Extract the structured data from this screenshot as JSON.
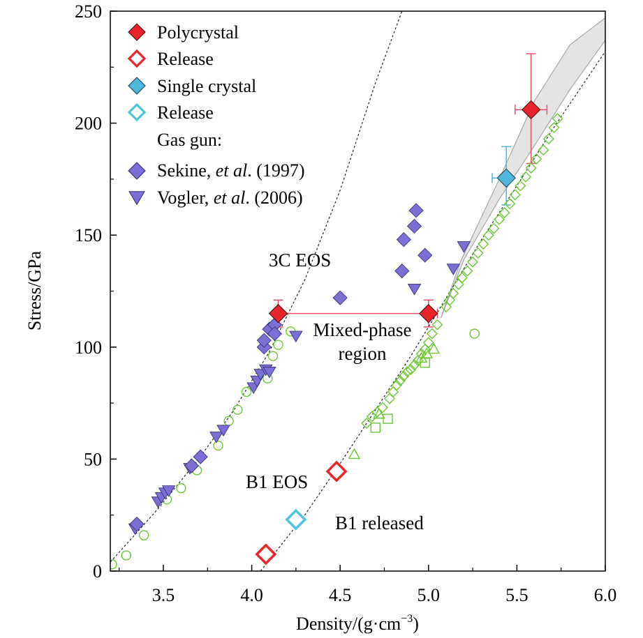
{
  "chart_data": {
    "type": "scatter",
    "xlabel": "Density/(g·cm",
    "xlabel_sup": "−3",
    "xlabel_end": ")",
    "ylabel": "Stress/GPa",
    "xlim": [
      3.2,
      6.0
    ],
    "ylim": [
      0,
      250
    ],
    "xticks": [
      "3.5",
      "4.0",
      "4.5",
      "5.0",
      "5.5",
      "6.0"
    ],
    "yticks": [
      "0",
      "50",
      "100",
      "150",
      "200",
      "250"
    ],
    "grid": false,
    "legend": {
      "position": "top-left",
      "entries": [
        {
          "label": "Polycrystal",
          "marker": "diamond-filled",
          "color": "#e8252a"
        },
        {
          "label": "Release",
          "marker": "diamond-open",
          "color": "#e8252a"
        },
        {
          "label": "Single crystal",
          "marker": "diamond-filled",
          "color": "#4fb6dc"
        },
        {
          "label": "Release",
          "marker": "diamond-open",
          "color": "#4fc3dc"
        }
      ],
      "gas_gun_title": "Gas gun:",
      "gas_gun_entries": [
        {
          "label_pre": "Sekine, ",
          "label_em": "et al",
          "label_post": ". (1997)",
          "marker": "diamond-filled",
          "color": "#7b6fd6"
        },
        {
          "label_pre": "Vogler, ",
          "label_em": "et al",
          "label_post": ". (2006)",
          "marker": "triangle-down",
          "color": "#7b6fd6"
        }
      ]
    },
    "annotations": {
      "eos_3c": "3C EOS",
      "mixed_1": "Mixed-phase",
      "mixed_2": "region",
      "b1_eos": "B1 EOS",
      "b1_released": "B1 released"
    },
    "colors": {
      "polycrystal": "#e8252a",
      "single_crystal": "#4fb6dc",
      "release_cyan": "#4fc3dc",
      "gas_gun": "#7b6fd6",
      "green_markers": "#6cc832",
      "band_fill": "#e4e4e4",
      "errorbar_red": "#ec4c6e"
    },
    "series": [
      {
        "name": "Polycrystal",
        "points": [
          {
            "x": 4.15,
            "y": 115,
            "xerr": [
              0,
              0.9
            ],
            "yerr": 6
          },
          {
            "x": 5.0,
            "y": 115,
            "yerr": 6
          },
          {
            "x": 5.58,
            "y": 206,
            "xerr": [
              0.09,
              0.09
            ],
            "yerr": [
              24,
              25
            ]
          }
        ]
      },
      {
        "name": "Release",
        "points": [
          {
            "x": 4.08,
            "y": 7.5
          },
          {
            "x": 4.48,
            "y": 44.5
          }
        ]
      },
      {
        "name": "Single crystal",
        "points": [
          {
            "x": 5.44,
            "y": 175.5,
            "xerr": [
              0.08,
              0
            ],
            "yerr": [
              12,
              14
            ]
          }
        ]
      },
      {
        "name": "Release",
        "points": [
          {
            "x": 4.25,
            "y": 23
          }
        ]
      },
      {
        "name": "Sekine, et al. (1997)",
        "points": [
          {
            "x": 3.35,
            "y": 21
          },
          {
            "x": 3.66,
            "y": 47
          },
          {
            "x": 3.71,
            "y": 51
          },
          {
            "x": 4.07,
            "y": 100
          },
          {
            "x": 4.07,
            "y": 103
          },
          {
            "x": 4.1,
            "y": 108
          },
          {
            "x": 4.13,
            "y": 110
          },
          {
            "x": 4.13,
            "y": 106
          },
          {
            "x": 4.5,
            "y": 122
          },
          {
            "x": 4.85,
            "y": 134
          },
          {
            "x": 4.86,
            "y": 148
          },
          {
            "x": 4.92,
            "y": 154
          },
          {
            "x": 4.93,
            "y": 161
          },
          {
            "x": 4.98,
            "y": 141
          }
        ]
      },
      {
        "name": "Vogler, et al. (2006)",
        "points": [
          {
            "x": 3.34,
            "y": 19
          },
          {
            "x": 3.47,
            "y": 31
          },
          {
            "x": 3.49,
            "y": 33
          },
          {
            "x": 3.51,
            "y": 35
          },
          {
            "x": 3.53,
            "y": 36
          },
          {
            "x": 3.65,
            "y": 46
          },
          {
            "x": 3.8,
            "y": 60
          },
          {
            "x": 3.84,
            "y": 63
          },
          {
            "x": 4.01,
            "y": 82
          },
          {
            "x": 4.03,
            "y": 85
          },
          {
            "x": 4.05,
            "y": 88
          },
          {
            "x": 4.08,
            "y": 90
          },
          {
            "x": 4.1,
            "y": 89
          },
          {
            "x": 4.25,
            "y": 105
          },
          {
            "x": 4.92,
            "y": 126
          },
          {
            "x": 5.14,
            "y": 135
          },
          {
            "x": 5.2,
            "y": 145
          }
        ]
      },
      {
        "name": "green-circles",
        "points": [
          {
            "x": 3.21,
            "y": 3
          },
          {
            "x": 3.29,
            "y": 7
          },
          {
            "x": 3.39,
            "y": 16
          },
          {
            "x": 3.52,
            "y": 32
          },
          {
            "x": 3.6,
            "y": 37
          },
          {
            "x": 3.69,
            "y": 45
          },
          {
            "x": 3.81,
            "y": 56
          },
          {
            "x": 3.87,
            "y": 67
          },
          {
            "x": 3.92,
            "y": 72
          },
          {
            "x": 3.97,
            "y": 80
          },
          {
            "x": 4.09,
            "y": 86
          },
          {
            "x": 4.12,
            "y": 96
          },
          {
            "x": 4.15,
            "y": 101
          },
          {
            "x": 4.22,
            "y": 107
          },
          {
            "x": 5.26,
            "y": 106
          }
        ]
      },
      {
        "name": "green-triangles",
        "points": [
          {
            "x": 4.58,
            "y": 52
          },
          {
            "x": 4.72,
            "y": 70
          },
          {
            "x": 4.96,
            "y": 95
          },
          {
            "x": 4.99,
            "y": 97
          },
          {
            "x": 5.03,
            "y": 99
          }
        ]
      },
      {
        "name": "green-squares",
        "points": [
          {
            "x": 4.7,
            "y": 64
          },
          {
            "x": 4.77,
            "y": 68
          },
          {
            "x": 4.98,
            "y": 93
          }
        ]
      },
      {
        "name": "green-diamonds",
        "points": [
          {
            "x": 4.65,
            "y": 66
          },
          {
            "x": 4.68,
            "y": 69
          },
          {
            "x": 4.71,
            "y": 71
          },
          {
            "x": 4.74,
            "y": 73
          },
          {
            "x": 4.78,
            "y": 77
          },
          {
            "x": 4.8,
            "y": 80
          },
          {
            "x": 4.82,
            "y": 83
          },
          {
            "x": 4.84,
            "y": 85
          },
          {
            "x": 4.86,
            "y": 87
          },
          {
            "x": 4.88,
            "y": 89
          },
          {
            "x": 4.9,
            "y": 90
          },
          {
            "x": 4.92,
            "y": 92
          },
          {
            "x": 4.94,
            "y": 94
          },
          {
            "x": 4.96,
            "y": 97
          },
          {
            "x": 4.98,
            "y": 99
          },
          {
            "x": 5.0,
            "y": 102
          },
          {
            "x": 5.02,
            "y": 106
          },
          {
            "x": 5.05,
            "y": 110
          },
          {
            "x": 5.1,
            "y": 118
          },
          {
            "x": 5.12,
            "y": 121
          },
          {
            "x": 5.14,
            "y": 124
          },
          {
            "x": 5.17,
            "y": 128
          },
          {
            "x": 5.19,
            "y": 131
          },
          {
            "x": 5.22,
            "y": 134
          },
          {
            "x": 5.25,
            "y": 138
          },
          {
            "x": 5.28,
            "y": 142
          },
          {
            "x": 5.31,
            "y": 146
          },
          {
            "x": 5.34,
            "y": 150
          },
          {
            "x": 5.37,
            "y": 153
          },
          {
            "x": 5.4,
            "y": 157
          },
          {
            "x": 5.43,
            "y": 160
          },
          {
            "x": 5.46,
            "y": 164
          },
          {
            "x": 5.49,
            "y": 168
          },
          {
            "x": 5.52,
            "y": 172
          },
          {
            "x": 5.55,
            "y": 176
          },
          {
            "x": 5.58,
            "y": 180
          },
          {
            "x": 5.61,
            "y": 184
          },
          {
            "x": 5.65,
            "y": 188
          },
          {
            "x": 5.68,
            "y": 193
          },
          {
            "x": 5.71,
            "y": 198
          },
          {
            "x": 5.73,
            "y": 202
          }
        ]
      },
      {
        "name": "3C EOS",
        "line": [
          [
            3.2,
            4
          ],
          [
            3.45,
            26
          ],
          [
            3.7,
            50
          ],
          [
            3.9,
            72
          ],
          [
            4.1,
            98
          ],
          [
            4.3,
            130
          ],
          [
            4.5,
            170
          ],
          [
            4.7,
            218
          ],
          [
            4.85,
            250
          ]
        ]
      },
      {
        "name": "B1 EOS",
        "line": [
          [
            4.05,
            0
          ],
          [
            4.3,
            25
          ],
          [
            4.5,
            48
          ],
          [
            4.7,
            72
          ],
          [
            4.9,
            96
          ],
          [
            5.1,
            122
          ],
          [
            5.3,
            148
          ],
          [
            5.5,
            172
          ],
          [
            5.7,
            197
          ],
          [
            6.0,
            232
          ]
        ]
      },
      {
        "name": "band",
        "polygon": [
          [
            5.07,
            113
          ],
          [
            5.18,
            138
          ],
          [
            5.4,
            175
          ],
          [
            5.6,
            210
          ],
          [
            5.8,
            235
          ],
          [
            6.0,
            247
          ],
          [
            6.0,
            237
          ],
          [
            5.8,
            215
          ],
          [
            5.6,
            190
          ],
          [
            5.4,
            166
          ],
          [
            5.2,
            139
          ],
          [
            5.07,
            113
          ]
        ]
      }
    ]
  }
}
